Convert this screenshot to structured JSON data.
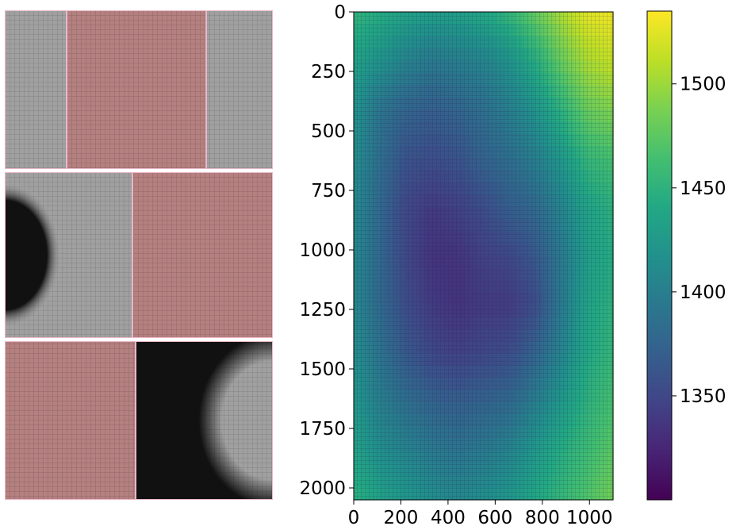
{
  "left_panel": {
    "rows": [
      {
        "tiles": [
          {
            "shade": "gray",
            "vignette": "none"
          },
          {
            "shade": "red",
            "vignette": "none"
          },
          {
            "shade": "gray",
            "vignette": "none"
          }
        ]
      },
      {
        "tiles": [
          {
            "shade": "gray",
            "vignette": "left-dark-arc"
          },
          {
            "shade": "red",
            "vignette": "none"
          }
        ]
      },
      {
        "tiles": [
          {
            "shade": "red",
            "vignette": "none"
          },
          {
            "shade": "gray",
            "vignette": "right-dark-arc"
          }
        ]
      }
    ],
    "colors": {
      "gray": "#9a9a9a",
      "red": "#b07878",
      "border": "#e8b8c8",
      "dark": "#111111"
    }
  },
  "chart_data": {
    "type": "heatmap",
    "title": "",
    "xlabel": "",
    "ylabel": "",
    "xlim": [
      0,
      1100
    ],
    "ylim": [
      2050,
      0
    ],
    "x_ticks": [
      0,
      200,
      400,
      600,
      800,
      1000
    ],
    "x_tick_labels": [
      "0",
      "200",
      "400",
      "600",
      "800",
      "1000"
    ],
    "y_ticks": [
      0,
      250,
      500,
      750,
      1000,
      1250,
      1500,
      1750,
      2000
    ],
    "y_tick_labels": [
      "0",
      "250",
      "500",
      "750",
      "1000",
      "1250",
      "1500",
      "1750",
      "2000"
    ],
    "colormap": "viridis",
    "colorbar": {
      "vmin": 1300,
      "vmax": 1535,
      "ticks": [
        1350,
        1400,
        1450,
        1500
      ],
      "tick_labels": [
        "1350",
        "1400",
        "1450",
        "1500"
      ]
    },
    "grid_values": [
      [
        1452,
        1445,
        1435,
        1430,
        1432,
        1440,
        1455,
        1480,
        1505,
        1525,
        1530
      ],
      [
        1435,
        1420,
        1405,
        1395,
        1400,
        1405,
        1420,
        1445,
        1480,
        1505,
        1515
      ],
      [
        1420,
        1390,
        1375,
        1370,
        1375,
        1385,
        1400,
        1420,
        1450,
        1480,
        1490
      ],
      [
        1415,
        1385,
        1360,
        1355,
        1360,
        1375,
        1385,
        1400,
        1425,
        1455,
        1465
      ],
      [
        1410,
        1380,
        1350,
        1340,
        1345,
        1355,
        1370,
        1380,
        1405,
        1435,
        1450
      ],
      [
        1410,
        1380,
        1350,
        1335,
        1335,
        1345,
        1350,
        1365,
        1395,
        1430,
        1445
      ],
      [
        1410,
        1380,
        1355,
        1340,
        1335,
        1340,
        1340,
        1355,
        1395,
        1435,
        1450
      ],
      [
        1415,
        1390,
        1365,
        1350,
        1345,
        1350,
        1355,
        1375,
        1405,
        1440,
        1455
      ],
      [
        1425,
        1400,
        1385,
        1375,
        1370,
        1375,
        1380,
        1400,
        1425,
        1450,
        1465
      ],
      [
        1435,
        1415,
        1405,
        1395,
        1390,
        1395,
        1405,
        1425,
        1445,
        1460,
        1475
      ],
      [
        1450,
        1435,
        1425,
        1415,
        1410,
        1415,
        1425,
        1440,
        1455,
        1470,
        1485
      ]
    ]
  }
}
